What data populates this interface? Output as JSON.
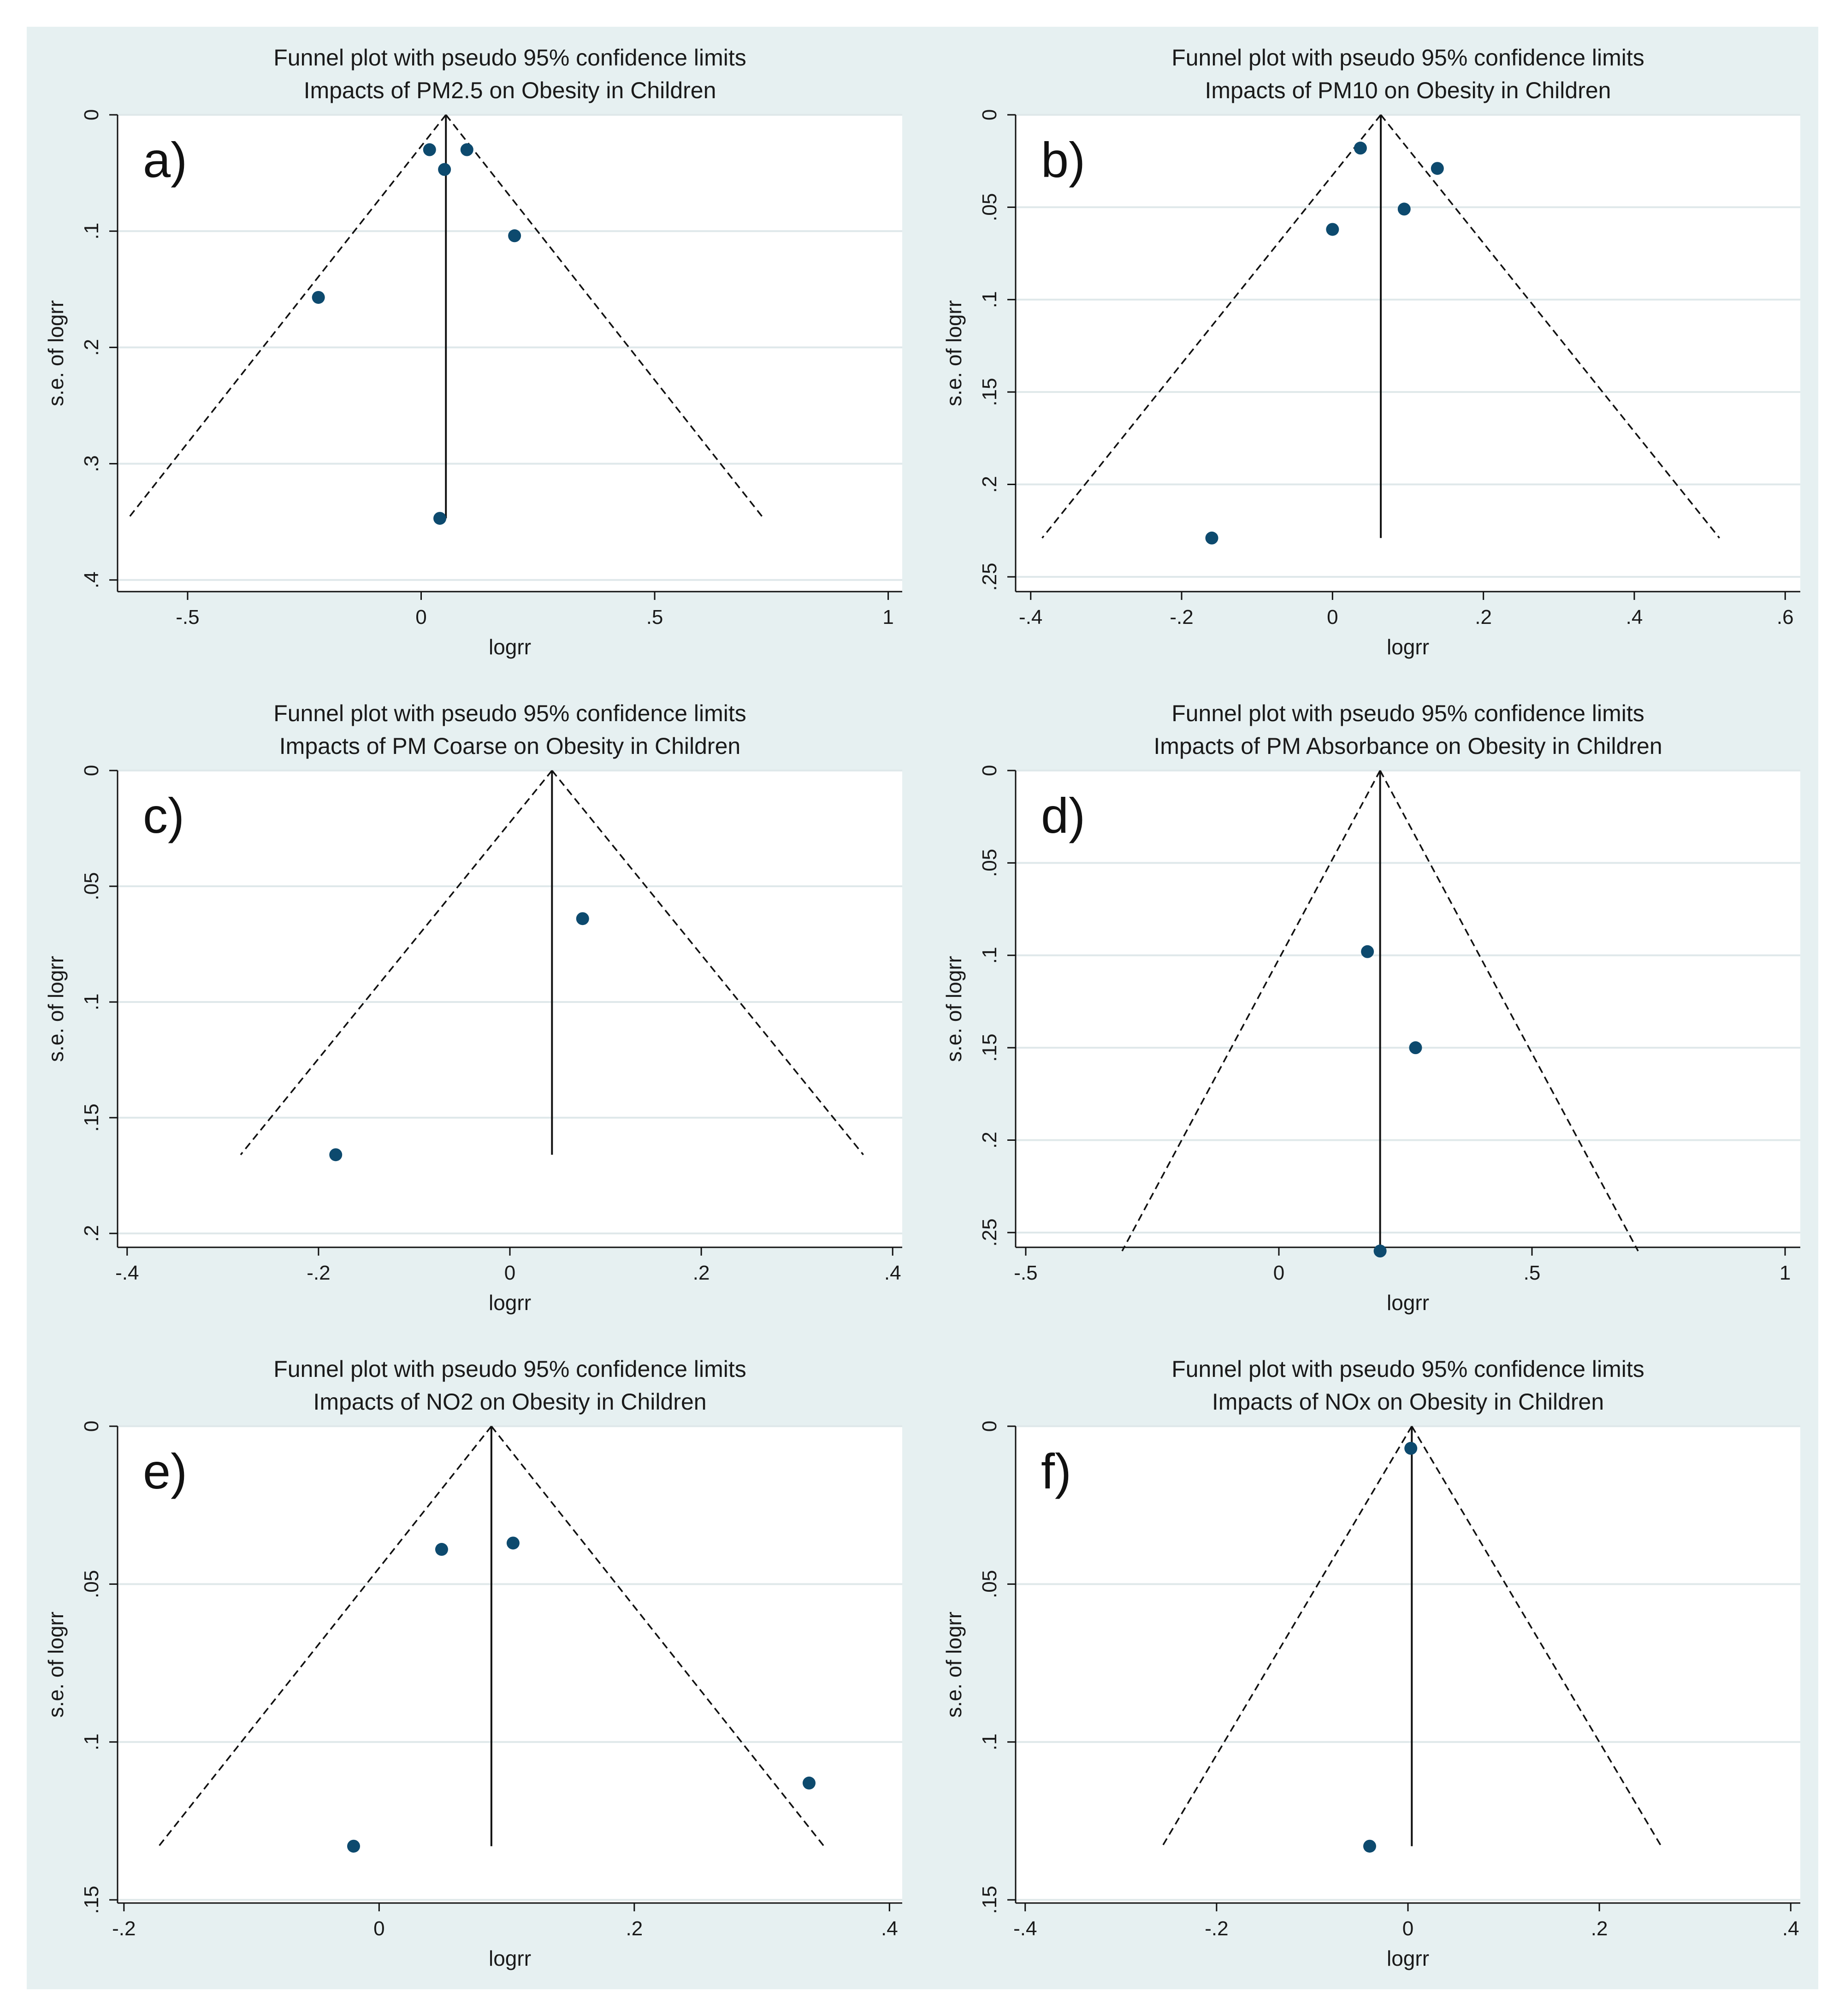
{
  "colors": {
    "outer_background": "#e6f0f1",
    "plot_background": "#ffffff",
    "gridline": "#dfe8ea",
    "marker": "#0d4a6e",
    "line": "#111111"
  },
  "chart_data": [
    {
      "id": "a",
      "type": "scatter",
      "panel_label": "a)",
      "title": "Funnel plot with pseudo 95% confidence limits",
      "subtitle": "Impacts of PM2.5 on Obesity in Children",
      "xlabel": "logrr",
      "ylabel": "s.e. of logrr",
      "xlim": [
        -0.65,
        1.03
      ],
      "ylim": [
        0,
        0.41
      ],
      "y_inverted": true,
      "xticks": [
        -0.5,
        0,
        0.5,
        1
      ],
      "xtick_labels": [
        "-.5",
        "0",
        ".5",
        "1"
      ],
      "yticks": [
        0,
        0.1,
        0.2,
        0.3,
        0.4
      ],
      "ytick_labels": [
        "0",
        ".1",
        ".2",
        ".3",
        ".4"
      ],
      "pooled_estimate": 0.053,
      "max_se": 0.347,
      "points": [
        {
          "x": 0.018,
          "y": 0.03
        },
        {
          "x": 0.05,
          "y": 0.047
        },
        {
          "x": 0.098,
          "y": 0.03
        },
        {
          "x": 0.2,
          "y": 0.104
        },
        {
          "x": -0.22,
          "y": 0.157
        },
        {
          "x": 0.04,
          "y": 0.347
        }
      ]
    },
    {
      "id": "b",
      "type": "scatter",
      "panel_label": "b)",
      "title": "Funnel plot with pseudo 95% confidence limits",
      "subtitle": "Impacts of PM10 on Obesity in Children",
      "xlabel": "logrr",
      "ylabel": "s.e. of logrr",
      "xlim": [
        -0.42,
        0.62
      ],
      "ylim": [
        0,
        0.258
      ],
      "y_inverted": true,
      "xticks": [
        -0.4,
        -0.2,
        0,
        0.2,
        0.4,
        0.6
      ],
      "xtick_labels": [
        "-.4",
        "-.2",
        "0",
        ".2",
        ".4",
        ".6"
      ],
      "yticks": [
        0,
        0.05,
        0.1,
        0.15,
        0.2,
        0.25
      ],
      "ytick_labels": [
        "0",
        ".05",
        ".1",
        ".15",
        ".2",
        ".25"
      ],
      "pooled_estimate": 0.064,
      "max_se": 0.229,
      "points": [
        {
          "x": 0.037,
          "y": 0.018
        },
        {
          "x": 0.139,
          "y": 0.029
        },
        {
          "x": 0.095,
          "y": 0.051
        },
        {
          "x": 0.0,
          "y": 0.062
        },
        {
          "x": -0.16,
          "y": 0.229
        }
      ]
    },
    {
      "id": "c",
      "type": "scatter",
      "panel_label": "c)",
      "title": "Funnel plot with pseudo 95% confidence limits",
      "subtitle": "Impacts of PM Coarse on Obesity in Children",
      "xlabel": "logrr",
      "ylabel": "s.e. of logrr",
      "xlim": [
        -0.41,
        0.41
      ],
      "ylim": [
        0,
        0.206
      ],
      "y_inverted": true,
      "xticks": [
        -0.4,
        -0.2,
        0,
        0.2,
        0.4
      ],
      "xtick_labels": [
        "-.4",
        "-.2",
        "0",
        ".2",
        ".4"
      ],
      "yticks": [
        0,
        0.05,
        0.1,
        0.15,
        0.2
      ],
      "ytick_labels": [
        "0",
        ".05",
        ".1",
        ".15",
        ".2"
      ],
      "pooled_estimate": 0.044,
      "max_se": 0.166,
      "points": [
        {
          "x": 0.076,
          "y": 0.064
        },
        {
          "x": -0.182,
          "y": 0.166
        }
      ]
    },
    {
      "id": "d",
      "type": "scatter",
      "panel_label": "d)",
      "title": "Funnel plot with pseudo 95% confidence limits",
      "subtitle": "Impacts of PM Absorbance on Obesity in Children",
      "xlabel": "logrr",
      "ylabel": "s.e. of logrr",
      "xlim": [
        -0.52,
        1.03
      ],
      "ylim": [
        0,
        0.258
      ],
      "y_inverted": true,
      "xticks": [
        -0.5,
        0,
        0.5,
        1
      ],
      "xtick_labels": [
        "-.5",
        "0",
        ".5",
        "1"
      ],
      "yticks": [
        0,
        0.05,
        0.1,
        0.15,
        0.2,
        0.25
      ],
      "ytick_labels": [
        "0",
        ".05",
        ".1",
        ".15",
        ".2",
        ".25"
      ],
      "pooled_estimate": 0.2,
      "max_se": 0.26,
      "points": [
        {
          "x": 0.175,
          "y": 0.098
        },
        {
          "x": 0.27,
          "y": 0.15
        },
        {
          "x": 0.2,
          "y": 0.26
        }
      ]
    },
    {
      "id": "e",
      "type": "scatter",
      "panel_label": "e)",
      "title": "Funnel plot with pseudo 95% confidence limits",
      "subtitle": "Impacts of NO2 on Obesity in Children",
      "xlabel": "logrr",
      "ylabel": "s.e. of logrr",
      "xlim": [
        -0.205,
        0.41
      ],
      "ylim": [
        0,
        0.151
      ],
      "y_inverted": true,
      "xticks": [
        -0.2,
        0,
        0.2,
        0.4
      ],
      "xtick_labels": [
        "-.2",
        "0",
        ".2",
        ".4"
      ],
      "yticks": [
        0,
        0.05,
        0.1,
        0.15
      ],
      "ytick_labels": [
        "0",
        ".05",
        ".1",
        ".15"
      ],
      "pooled_estimate": 0.088,
      "max_se": 0.133,
      "points": [
        {
          "x": 0.049,
          "y": 0.039
        },
        {
          "x": 0.105,
          "y": 0.037
        },
        {
          "x": 0.337,
          "y": 0.113
        },
        {
          "x": -0.02,
          "y": 0.133
        }
      ]
    },
    {
      "id": "f",
      "type": "scatter",
      "panel_label": "f)",
      "title": "Funnel plot with pseudo 95% confidence limits",
      "subtitle": "Impacts of NOx on Obesity in Children",
      "xlabel": "logrr",
      "ylabel": "s.e. of logrr",
      "xlim": [
        -0.41,
        0.41
      ],
      "ylim": [
        0,
        0.151
      ],
      "y_inverted": true,
      "xticks": [
        -0.4,
        -0.2,
        0,
        0.2,
        0.4
      ],
      "xtick_labels": [
        "-.4",
        "-.2",
        "0",
        ".2",
        ".4"
      ],
      "yticks": [
        0,
        0.05,
        0.1,
        0.15
      ],
      "ytick_labels": [
        "0",
        ".05",
        ".1",
        ".15"
      ],
      "pooled_estimate": 0.004,
      "max_se": 0.133,
      "points": [
        {
          "x": 0.003,
          "y": 0.007
        },
        {
          "x": -0.04,
          "y": 0.133
        }
      ]
    }
  ]
}
